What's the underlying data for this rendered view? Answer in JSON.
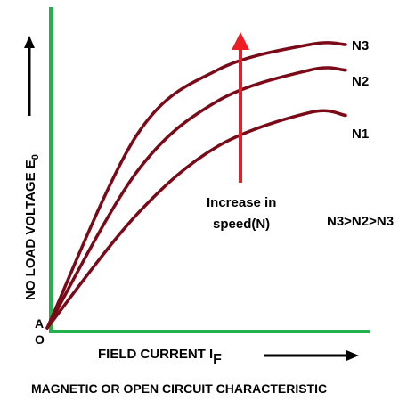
{
  "chart_data": {
    "type": "line",
    "title": "MAGNETIC OR OPEN CIRCUIT CHARACTERISTIC",
    "xlabel": "FIELD  CURRENT I",
    "xlabel_sub": "F",
    "ylabel": "NO LOAD VOLTAGE E",
    "ylabel_sub": "0",
    "origin_labels": [
      "A",
      "O"
    ],
    "annotation": [
      "Increase in",
      "speed(N)"
    ],
    "relation": "N3>N2>N3",
    "grid": false,
    "series": [
      {
        "name": "N1",
        "color": "#7b0a19",
        "x": [
          0,
          0.3,
          0.57,
          0.88,
          1.0
        ],
        "y": [
          0,
          0.4,
          0.64,
          0.76,
          0.75
        ]
      },
      {
        "name": "N2",
        "color": "#7b0a19",
        "x": [
          0,
          0.3,
          0.57,
          0.88,
          1.0
        ],
        "y": [
          0,
          0.55,
          0.8,
          0.91,
          0.91
        ]
      },
      {
        "name": "N3",
        "color": "#7b0a19",
        "x": [
          0,
          0.3,
          0.57,
          0.88,
          1.0
        ],
        "y": [
          0,
          0.68,
          0.91,
          1.0,
          1.0
        ]
      }
    ],
    "colors": {
      "axes": "#22b14c",
      "curves": "#7b0a19",
      "arrow": "#ee1c24",
      "text": "#000000"
    }
  }
}
